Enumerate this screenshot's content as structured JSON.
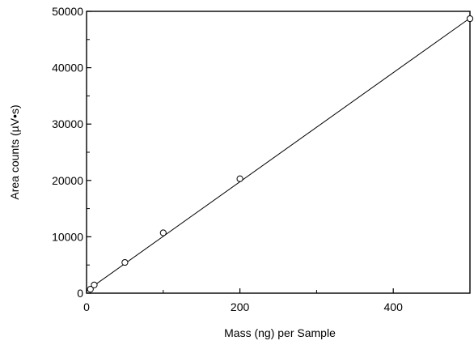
{
  "chart_data": {
    "type": "scatter",
    "title": "",
    "xlabel": "Mass (ng) per Sample",
    "ylabel": "Area counts (µV•s)",
    "xlim": [
      0,
      500
    ],
    "ylim": [
      0,
      50000
    ],
    "x_ticks": [
      0,
      200,
      400
    ],
    "x_tick_labels": [
      "0",
      "200",
      "400"
    ],
    "y_ticks": [
      0,
      10000,
      20000,
      30000,
      40000,
      50000
    ],
    "y_tick_labels": [
      "0",
      "10000",
      "20000",
      "30000",
      "40000",
      "50000"
    ],
    "grid": false,
    "legend": "none",
    "series": [
      {
        "marker": "open-circle",
        "points": [
          {
            "x": 5,
            "y": 700
          },
          {
            "x": 10,
            "y": 1450
          },
          {
            "x": 50,
            "y": 5450
          },
          {
            "x": 100,
            "y": 10700
          },
          {
            "x": 200,
            "y": 20300
          },
          {
            "x": 500,
            "y": 48700
          }
        ]
      }
    ],
    "fit_line": {
      "from": {
        "x": 0,
        "y": 400
      },
      "to": {
        "x": 500,
        "y": 48800
      }
    },
    "colors": {
      "line": "#000000",
      "marker_stroke": "#000000",
      "marker_fill": "#ffffff"
    }
  }
}
